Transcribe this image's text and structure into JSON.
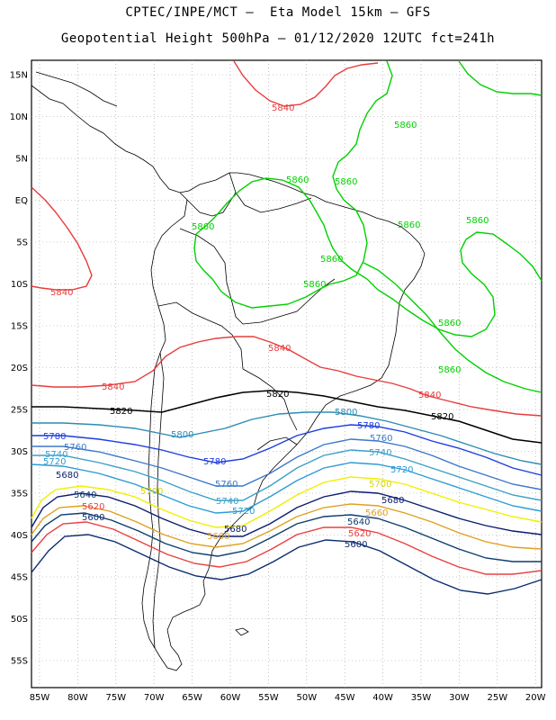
{
  "header": {
    "title_line1": "CPTEC/INPE/MCT –  Eta Model 15km – GFS",
    "title_line2": "Geopotential Height 500hPa – 01/12/2020 12UTC fct=241h"
  },
  "axes": {
    "lat_ticks": [
      "15N",
      "10N",
      "5N",
      "EQ",
      "5S",
      "10S",
      "15S",
      "20S",
      "25S",
      "30S",
      "35S",
      "40S",
      "45S",
      "50S",
      "55S"
    ],
    "lon_ticks": [
      "85W",
      "80W",
      "75W",
      "70W",
      "65W",
      "60W",
      "55W",
      "50W",
      "45W",
      "40W",
      "35W",
      "30W",
      "25W",
      "20W"
    ]
  },
  "colors": {
    "c5860": "#00d000",
    "c5840": "#e83c3c",
    "c5820": "#000000",
    "c5800": "#2a8cb4",
    "c5780": "#1c3ce0",
    "c5760": "#3c78c8",
    "c5740": "#3ca0c8",
    "c5720": "#2c9cd4",
    "c5700": "#f0f000",
    "c5680": "#0a1c6e",
    "c5660": "#e0a020",
    "c5640": "#0c3c6e",
    "c5620": "#e84040",
    "c5600": "#0a2c6e",
    "land": "#000000",
    "grid": "#999999"
  },
  "contours": {
    "h5860": "5860",
    "h5840": "5840",
    "h5820": "5820",
    "h5800": "5800",
    "h5780": "5780",
    "h5760": "5760",
    "h5740": "5740",
    "h5720": "5720",
    "h5700": "5700",
    "h5680": "5680",
    "h5660": "5660",
    "h5640": "5640",
    "h5620": "5620",
    "h5600": "5600"
  }
}
